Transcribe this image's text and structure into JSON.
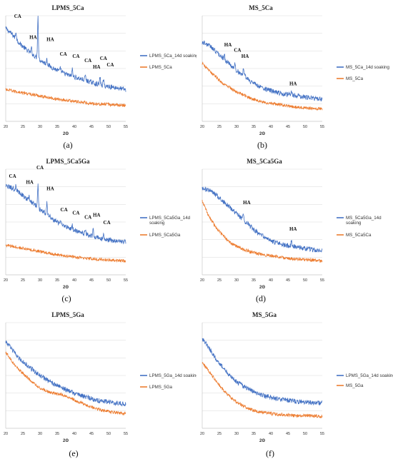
{
  "colors": {
    "soaked": "#4472C4",
    "base": "#ED7D31",
    "grid": "#d9d9d9",
    "axis": "#bfbfbf"
  },
  "chart_data": [
    {
      "type": "line",
      "panel": "(a)",
      "title": "LPMS_5Ca",
      "xlabel": "2Θ",
      "xlim": [
        20,
        55
      ],
      "xticks": [
        20,
        25,
        30,
        35,
        40,
        45,
        50,
        55
      ],
      "series": [
        {
          "name": "LPMS_5Ca_14d soaking",
          "x": [
            20,
            22,
            24,
            26,
            28,
            30,
            32,
            34,
            36,
            38,
            40,
            42,
            44,
            46,
            48,
            50,
            52,
            55
          ],
          "y": [
            0.88,
            0.82,
            0.74,
            0.68,
            0.63,
            0.58,
            0.54,
            0.5,
            0.47,
            0.44,
            0.42,
            0.4,
            0.38,
            0.36,
            0.34,
            0.33,
            0.32,
            0.3
          ]
        },
        {
          "name": "LPMS_5Ca",
          "x": [
            20,
            25,
            30,
            35,
            40,
            45,
            50,
            55
          ],
          "y": [
            0.3,
            0.27,
            0.24,
            0.21,
            0.19,
            0.17,
            0.16,
            0.15
          ]
        }
      ],
      "peaks": [
        {
          "x": 29.4,
          "h": 0.4
        },
        {
          "x": 23.0,
          "h": 0.07
        },
        {
          "x": 27.5,
          "h": 0.05
        },
        {
          "x": 32.0,
          "h": 0.06
        },
        {
          "x": 36.0,
          "h": 0.04
        },
        {
          "x": 39.4,
          "h": 0.07
        },
        {
          "x": 43.2,
          "h": 0.05
        },
        {
          "x": 47.5,
          "h": 0.07
        },
        {
          "x": 48.5,
          "h": 0.06
        }
      ],
      "annotations": [
        {
          "text": "CA",
          "x": 23.5,
          "y": 0.98
        },
        {
          "text": "CA",
          "x": 30.0,
          "y": 1.08
        },
        {
          "text": "HA",
          "x": 28.0,
          "y": 0.78
        },
        {
          "text": "HA",
          "x": 33.0,
          "y": 0.76
        },
        {
          "text": "CA",
          "x": 36.8,
          "y": 0.62
        },
        {
          "text": "CA",
          "x": 40.5,
          "y": 0.6
        },
        {
          "text": "CA",
          "x": 44.0,
          "y": 0.56
        },
        {
          "text": "HA",
          "x": 46.5,
          "y": 0.5
        },
        {
          "text": "CA",
          "x": 48.5,
          "y": 0.58
        },
        {
          "text": "CA",
          "x": 50.5,
          "y": 0.52
        }
      ]
    },
    {
      "type": "line",
      "panel": "(b)",
      "title": "MS_5Ca",
      "xlabel": "2Θ",
      "xlim": [
        20,
        55
      ],
      "xticks": [
        20,
        25,
        30,
        35,
        40,
        45,
        50,
        55
      ],
      "series": [
        {
          "name": "MS_5Ca_14d soaking",
          "x": [
            20,
            22,
            24,
            26,
            28,
            30,
            32,
            34,
            36,
            38,
            40,
            42,
            44,
            46,
            48,
            50,
            52,
            55
          ],
          "y": [
            0.75,
            0.72,
            0.66,
            0.6,
            0.54,
            0.48,
            0.44,
            0.38,
            0.34,
            0.31,
            0.29,
            0.27,
            0.26,
            0.25,
            0.24,
            0.23,
            0.22,
            0.21
          ]
        },
        {
          "name": "MS_5Ca",
          "x": [
            20,
            22,
            24,
            26,
            28,
            30,
            32,
            34,
            36,
            38,
            40,
            42,
            44,
            46,
            48,
            50,
            52,
            55
          ],
          "y": [
            0.55,
            0.48,
            0.42,
            0.36,
            0.32,
            0.28,
            0.25,
            0.22,
            0.2,
            0.18,
            0.17,
            0.16,
            0.15,
            0.14,
            0.13,
            0.13,
            0.12,
            0.12
          ]
        }
      ],
      "peaks": [
        {
          "x": 26.5,
          "h": 0.04
        },
        {
          "x": 29.5,
          "h": 0.05
        },
        {
          "x": 32.0,
          "h": 0.05
        },
        {
          "x": 46.0,
          "h": 0.03
        }
      ],
      "annotations": [
        {
          "text": "HA",
          "x": 27.5,
          "y": 0.71
        },
        {
          "text": "CA",
          "x": 30.3,
          "y": 0.66
        },
        {
          "text": "HA",
          "x": 32.5,
          "y": 0.6
        },
        {
          "text": "HA",
          "x": 46.5,
          "y": 0.34
        }
      ]
    },
    {
      "type": "line",
      "panel": "(c)",
      "title": "LPMS_5Ca5Ga",
      "xlabel": "2Θ",
      "xlim": [
        20,
        55
      ],
      "xticks": [
        20,
        25,
        30,
        35,
        40,
        45,
        50,
        55
      ],
      "series": [
        {
          "name": "LPMS_5Ca5Ga_14d soaking",
          "x": [
            20,
            22,
            24,
            26,
            28,
            30,
            32,
            34,
            36,
            38,
            40,
            42,
            44,
            46,
            48,
            50,
            52,
            55
          ],
          "y": [
            0.84,
            0.82,
            0.78,
            0.72,
            0.68,
            0.62,
            0.58,
            0.52,
            0.48,
            0.45,
            0.42,
            0.4,
            0.38,
            0.36,
            0.34,
            0.33,
            0.32,
            0.31
          ]
        },
        {
          "name": "LPMS_5Ca5Ga",
          "x": [
            20,
            25,
            30,
            35,
            40,
            45,
            50,
            55
          ],
          "y": [
            0.28,
            0.25,
            0.22,
            0.19,
            0.17,
            0.15,
            0.14,
            0.13
          ]
        }
      ],
      "peaks": [
        {
          "x": 29.4,
          "h": 0.22
        },
        {
          "x": 23.0,
          "h": 0.05
        },
        {
          "x": 26.8,
          "h": 0.04
        },
        {
          "x": 32.0,
          "h": 0.1
        },
        {
          "x": 36.0,
          "h": 0.04
        },
        {
          "x": 39.4,
          "h": 0.04
        },
        {
          "x": 43.2,
          "h": 0.03
        },
        {
          "x": 45.5,
          "h": 0.08
        },
        {
          "x": 48.5,
          "h": 0.04
        }
      ],
      "annotations": [
        {
          "text": "CA",
          "x": 22.0,
          "y": 0.92
        },
        {
          "text": "HA",
          "x": 27.0,
          "y": 0.86
        },
        {
          "text": "CA",
          "x": 30.0,
          "y": 1.0
        },
        {
          "text": "HA",
          "x": 33.0,
          "y": 0.8
        },
        {
          "text": "CA",
          "x": 37.0,
          "y": 0.6
        },
        {
          "text": "CA",
          "x": 40.5,
          "y": 0.57
        },
        {
          "text": "CA",
          "x": 44.0,
          "y": 0.53
        },
        {
          "text": "HA",
          "x": 46.5,
          "y": 0.55
        },
        {
          "text": "CA",
          "x": 49.5,
          "y": 0.48
        }
      ]
    },
    {
      "type": "line",
      "panel": "(d)",
      "title": "MS_5Ca5Ga",
      "xlabel": "2Θ",
      "xlim": [
        20,
        55
      ],
      "xticks": [
        20,
        25,
        30,
        35,
        40,
        45,
        50,
        55
      ],
      "series": [
        {
          "name": "MS_5Ca5Ga_14d soaking",
          "x": [
            20,
            22,
            24,
            26,
            28,
            30,
            32,
            34,
            36,
            38,
            40,
            42,
            44,
            46,
            48,
            50,
            52,
            55
          ],
          "y": [
            0.82,
            0.8,
            0.76,
            0.7,
            0.64,
            0.58,
            0.52,
            0.46,
            0.4,
            0.36,
            0.32,
            0.3,
            0.28,
            0.27,
            0.26,
            0.25,
            0.24,
            0.23
          ]
        },
        {
          "name": "MS_5Ca5Ca",
          "x": [
            20,
            22,
            24,
            26,
            28,
            30,
            32,
            34,
            36,
            38,
            40,
            42,
            44,
            46,
            48,
            50,
            52,
            55
          ],
          "y": [
            0.7,
            0.55,
            0.45,
            0.37,
            0.31,
            0.27,
            0.24,
            0.22,
            0.2,
            0.19,
            0.18,
            0.17,
            0.16,
            0.15,
            0.15,
            0.14,
            0.14,
            0.13
          ]
        }
      ],
      "peaks": [
        {
          "x": 32.0,
          "h": 0.07
        },
        {
          "x": 46.0,
          "h": 0.05
        }
      ],
      "annotations": [
        {
          "text": "HA",
          "x": 33.0,
          "y": 0.67
        },
        {
          "text": "HA",
          "x": 46.5,
          "y": 0.42
        }
      ]
    },
    {
      "type": "line",
      "panel": "(e)",
      "title": "LPMS_5Ga",
      "xlabel": "2Θ",
      "xlim": [
        20,
        55
      ],
      "xticks": [
        20,
        25,
        30,
        35,
        40,
        45,
        50,
        55
      ],
      "series": [
        {
          "name": "LPMS_5Ga_14d soaking",
          "x": [
            20,
            22,
            24,
            26,
            28,
            30,
            32,
            34,
            36,
            38,
            40,
            42,
            44,
            46,
            48,
            50,
            52,
            55
          ],
          "y": [
            0.82,
            0.74,
            0.66,
            0.6,
            0.55,
            0.5,
            0.46,
            0.42,
            0.39,
            0.36,
            0.33,
            0.31,
            0.29,
            0.27,
            0.26,
            0.25,
            0.24,
            0.23
          ]
        },
        {
          "name": "LPMS_5Ga",
          "x": [
            20,
            22,
            24,
            26,
            28,
            30,
            32,
            34,
            36,
            38,
            40,
            42,
            44,
            46,
            48,
            50,
            52,
            55
          ],
          "y": [
            0.72,
            0.63,
            0.55,
            0.49,
            0.43,
            0.38,
            0.35,
            0.33,
            0.32,
            0.3,
            0.27,
            0.24,
            0.21,
            0.19,
            0.17,
            0.16,
            0.15,
            0.14
          ]
        }
      ],
      "peaks": [],
      "annotations": []
    },
    {
      "type": "line",
      "panel": "(f)",
      "title": "MS_5Ga",
      "xlabel": "2Θ",
      "xlim": [
        20,
        55
      ],
      "xticks": [
        20,
        25,
        30,
        35,
        40,
        45,
        50,
        55
      ],
      "series": [
        {
          "name": "LPMS_5Ga_14d soaking",
          "x": [
            20,
            22,
            24,
            26,
            28,
            30,
            32,
            34,
            36,
            38,
            40,
            42,
            44,
            46,
            48,
            50,
            52,
            55
          ],
          "y": [
            0.85,
            0.76,
            0.66,
            0.58,
            0.5,
            0.44,
            0.4,
            0.36,
            0.33,
            0.31,
            0.29,
            0.28,
            0.27,
            0.26,
            0.25,
            0.25,
            0.24,
            0.24
          ]
        },
        {
          "name": "MS_5Ga",
          "x": [
            20,
            22,
            24,
            26,
            28,
            30,
            32,
            34,
            36,
            38,
            40,
            42,
            44,
            46,
            48,
            50,
            52,
            55
          ],
          "y": [
            0.62,
            0.54,
            0.45,
            0.37,
            0.3,
            0.25,
            0.21,
            0.18,
            0.16,
            0.15,
            0.14,
            0.13,
            0.13,
            0.12,
            0.12,
            0.12,
            0.12,
            0.11
          ]
        }
      ],
      "peaks": [],
      "annotations": []
    }
  ]
}
